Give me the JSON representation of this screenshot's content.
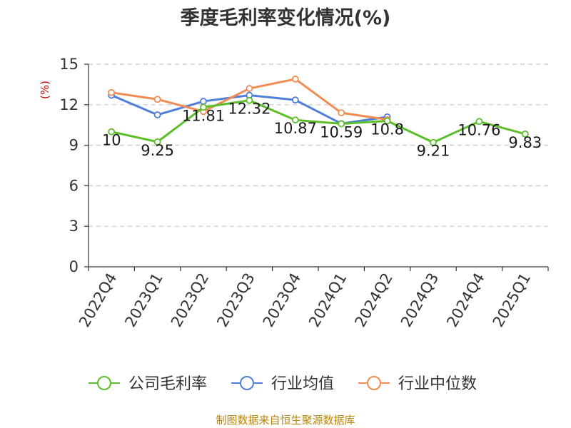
{
  "chart_data": {
    "type": "line",
    "title": "季度毛利率变化情况(%)",
    "ylabel": "(%)",
    "xlabel": "",
    "categories": [
      "2022Q4",
      "2023Q1",
      "2023Q2",
      "2023Q3",
      "2023Q4",
      "2024Q1",
      "2024Q2",
      "2024Q3",
      "2024Q4",
      "2025Q1"
    ],
    "ylim": [
      0,
      15
    ],
    "yticks": [
      0,
      3,
      6,
      9,
      12,
      15
    ],
    "grid": true,
    "legend_position": "bottom",
    "series": [
      {
        "name": "公司毛利率",
        "color": "#5cbf2a",
        "values": [
          10,
          9.25,
          11.81,
          12.32,
          10.87,
          10.59,
          10.8,
          9.21,
          10.76,
          9.83
        ],
        "labels": [
          "10",
          "9.25",
          "11.81",
          "12.32",
          "10.87",
          "10.59",
          "10.8",
          "9.21",
          "10.76",
          "9.83"
        ]
      },
      {
        "name": "行业均值",
        "color": "#4f7fd9",
        "values": [
          12.7,
          11.25,
          12.25,
          12.7,
          12.35,
          10.6,
          11.1,
          null,
          null,
          null
        ]
      },
      {
        "name": "行业中位数",
        "color": "#f28c52",
        "values": [
          12.9,
          12.4,
          11.5,
          13.2,
          13.9,
          11.4,
          10.9,
          null,
          null,
          null
        ]
      }
    ],
    "source": "制图数据来自恒生聚源数据库"
  }
}
